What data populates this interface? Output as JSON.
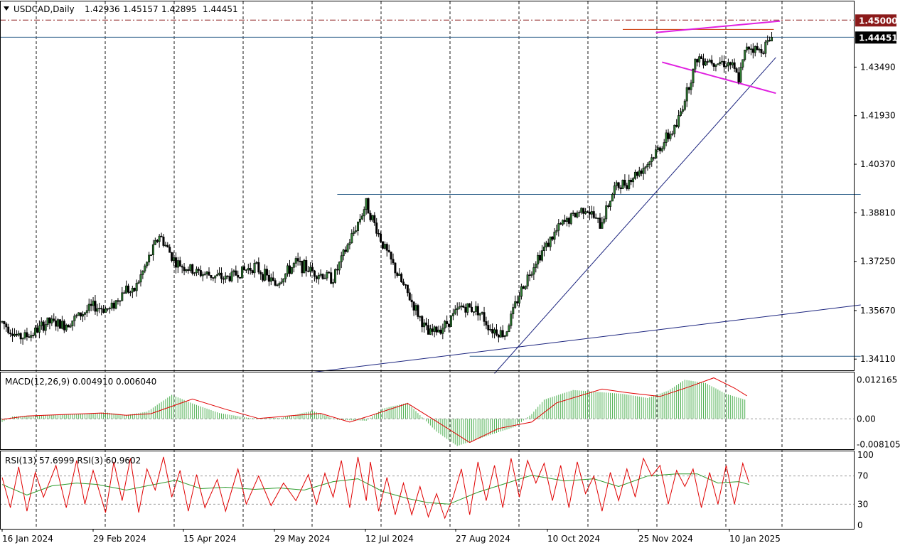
{
  "header": {
    "symbol": "USDCAD,Daily",
    "open": "1.42936",
    "high": "1.45157",
    "low": "1.42895",
    "close": "1.44451"
  },
  "tags": {
    "level": "1.45000",
    "level_color": "#8b1a1a",
    "last": "1.44451",
    "last_color": "#000000"
  },
  "panels": {
    "macd": {
      "label": "MACD(12,26,9) 0.004910 0.006040"
    },
    "rsi": {
      "label": "RSI(13) 57.6999 RSI(3) 60.9602"
    }
  },
  "colors": {
    "bull_candle": "#2e7d32",
    "bear_candle": "#000000",
    "macd_histogram": "#4caf50",
    "macd_signal": "#e00000",
    "rsi_fast": "#e00000",
    "rsi_slow": "#2e9c2e",
    "trendline": "#1a237e",
    "wedge": "#e020e0",
    "horizontal": "#2d5f8a"
  },
  "chart_data": [
    {
      "type": "candlestick",
      "title": "USDCAD,Daily",
      "x_ticks": [
        "16 Jan 2024",
        "29 Feb 2024",
        "15 Apr 2024",
        "29 May 2024",
        "12 Jul 2024",
        "27 Aug 2024",
        "10 Oct 2024",
        "25 Nov 2024",
        "10 Jan 2025"
      ],
      "y_ticks": [
        "1.43490",
        "1.41930",
        "1.40370",
        "1.38810",
        "1.37250",
        "1.35670",
        "1.34110"
      ],
      "ylim": [
        1.3375,
        1.456
      ],
      "grid": true,
      "anchors": [
        [
          0,
          1.353
        ],
        [
          8,
          1.348
        ],
        [
          14,
          1.349
        ],
        [
          22,
          1.353
        ],
        [
          30,
          1.352
        ],
        [
          44,
          1.358
        ],
        [
          52,
          1.357
        ],
        [
          60,
          1.364
        ],
        [
          63,
          1.362
        ],
        [
          70,
          1.372
        ],
        [
          76,
          1.381
        ],
        [
          84,
          1.372
        ],
        [
          94,
          1.369
        ],
        [
          108,
          1.367
        ],
        [
          122,
          1.371
        ],
        [
          132,
          1.365
        ],
        [
          142,
          1.372
        ],
        [
          151,
          1.369
        ],
        [
          160,
          1.367
        ],
        [
          172,
          1.385
        ],
        [
          176,
          1.391
        ],
        [
          184,
          1.378
        ],
        [
          192,
          1.367
        ],
        [
          200,
          1.357
        ],
        [
          206,
          1.349
        ],
        [
          214,
          1.352
        ],
        [
          222,
          1.358
        ],
        [
          230,
          1.357
        ],
        [
          236,
          1.351
        ],
        [
          243,
          1.349
        ],
        [
          250,
          1.362
        ],
        [
          258,
          1.373
        ],
        [
          270,
          1.384
        ],
        [
          282,
          1.39
        ],
        [
          289,
          1.384
        ],
        [
          296,
          1.396
        ],
        [
          302,
          1.398
        ],
        [
          312,
          1.404
        ],
        [
          320,
          1.411
        ],
        [
          326,
          1.416
        ],
        [
          330,
          1.425
        ],
        [
          336,
          1.438
        ],
        [
          344,
          1.437
        ],
        [
          352,
          1.436
        ],
        [
          356,
          1.431
        ],
        [
          360,
          1.442
        ],
        [
          366,
          1.44
        ],
        [
          372,
          1.444
        ]
      ],
      "overlays": [
        {
          "kind": "horizontal",
          "price": 1.45,
          "style": "dash-dot",
          "color": "#8b1a1a"
        },
        {
          "kind": "horizontal",
          "price": 1.44451,
          "color": "#2d5f8a"
        },
        {
          "kind": "segment",
          "from": [
            300,
            1.447
          ],
          "to": [
            373,
            1.447
          ],
          "color": "#cc3300"
        },
        {
          "kind": "segment",
          "from": [
            162,
            1.394
          ],
          "to": [
            415,
            1.394
          ],
          "color": "#2d5f8a"
        },
        {
          "kind": "segment",
          "from": [
            226,
            1.342
          ],
          "to": [
            415,
            1.342
          ],
          "color": "#2d5f8a"
        },
        {
          "kind": "segment",
          "from": [
            149,
            1.3368
          ],
          "to": [
            415,
            1.3585
          ],
          "color": "#1a237e"
        },
        {
          "kind": "segment",
          "from": [
            238,
            1.3365
          ],
          "to": [
            374,
            1.438
          ],
          "color": "#1a237e"
        },
        {
          "kind": "segment",
          "from": [
            316,
            1.446
          ],
          "to": [
            376,
            1.4497
          ],
          "color": "#e020e0"
        },
        {
          "kind": "segment",
          "from": [
            319,
            1.4365
          ],
          "to": [
            374,
            1.4265
          ],
          "color": "#e020e0"
        }
      ]
    },
    {
      "type": "macd",
      "title": "MACD(12,26,9) 0.004910 0.006040",
      "y_ticks": [
        "0.012165",
        "0.00",
        "-0.008105"
      ],
      "ylim": [
        -0.0095,
        0.0145
      ],
      "histogram": [
        [
          0,
          -0.001
        ],
        [
          5,
          0.0007
        ],
        [
          20,
          0.0012
        ],
        [
          40,
          0.0016
        ],
        [
          50,
          0.002
        ],
        [
          60,
          0.0012
        ],
        [
          70,
          0.0022
        ],
        [
          82,
          0.0075
        ],
        [
          92,
          0.0048
        ],
        [
          105,
          0.0018
        ],
        [
          120,
          0.0002
        ],
        [
          135,
          0.0003
        ],
        [
          150,
          0.0025
        ],
        [
          162,
          -0.0003
        ],
        [
          176,
          -0.0006
        ],
        [
          184,
          0.0032
        ],
        [
          196,
          0.005
        ],
        [
          210,
          -0.004
        ],
        [
          220,
          -0.0085
        ],
        [
          236,
          -0.005
        ],
        [
          248,
          -0.0025
        ],
        [
          256,
          0.0015
        ],
        [
          262,
          0.006
        ],
        [
          276,
          0.009
        ],
        [
          288,
          0.0084
        ],
        [
          300,
          0.0078
        ],
        [
          312,
          0.0065
        ],
        [
          322,
          0.0088
        ],
        [
          330,
          0.0122
        ],
        [
          340,
          0.0112
        ],
        [
          350,
          0.0078
        ],
        [
          359,
          0.006
        ]
      ],
      "signal": [
        [
          0,
          -0.0002
        ],
        [
          12,
          0.0009
        ],
        [
          36,
          0.0015
        ],
        [
          48,
          0.0018
        ],
        [
          60,
          0.0011
        ],
        [
          72,
          0.0016
        ],
        [
          92,
          0.0062
        ],
        [
          108,
          0.003
        ],
        [
          124,
          0.0001
        ],
        [
          140,
          0.001
        ],
        [
          154,
          0.0017
        ],
        [
          168,
          -0.001
        ],
        [
          178,
          0.001
        ],
        [
          196,
          0.0048
        ],
        [
          210,
          -0.0008
        ],
        [
          226,
          -0.0074
        ],
        [
          240,
          -0.003
        ],
        [
          256,
          -0.001
        ],
        [
          268,
          0.005
        ],
        [
          290,
          0.0093
        ],
        [
          302,
          0.0082
        ],
        [
          318,
          0.007
        ],
        [
          332,
          0.01
        ],
        [
          344,
          0.0128
        ],
        [
          354,
          0.0096
        ],
        [
          360,
          0.0072
        ]
      ]
    },
    {
      "type": "rsi",
      "title": "RSI(13) 57.6999 RSI(3) 60.9602",
      "y_ticks": [
        "100",
        "70",
        "30",
        "0"
      ],
      "ylim": [
        -5,
        105
      ],
      "rsi_slow": [
        [
          0,
          58
        ],
        [
          12,
          43
        ],
        [
          24,
          56
        ],
        [
          36,
          60
        ],
        [
          46,
          58
        ],
        [
          60,
          50
        ],
        [
          70,
          56
        ],
        [
          84,
          64
        ],
        [
          96,
          52
        ],
        [
          108,
          54
        ],
        [
          122,
          51
        ],
        [
          134,
          53
        ],
        [
          146,
          50
        ],
        [
          160,
          62
        ],
        [
          172,
          66
        ],
        [
          184,
          48
        ],
        [
          196,
          38
        ],
        [
          206,
          32
        ],
        [
          216,
          30
        ],
        [
          230,
          47
        ],
        [
          244,
          60
        ],
        [
          256,
          71
        ],
        [
          272,
          63
        ],
        [
          286,
          66
        ],
        [
          298,
          55
        ],
        [
          312,
          70
        ],
        [
          326,
          73
        ],
        [
          336,
          73
        ],
        [
          346,
          60
        ],
        [
          356,
          62
        ],
        [
          361,
          58
        ]
      ],
      "rsi_fast": [
        [
          0,
          68
        ],
        [
          4,
          25
        ],
        [
          8,
          83
        ],
        [
          12,
          20
        ],
        [
          16,
          75
        ],
        [
          20,
          40
        ],
        [
          26,
          85
        ],
        [
          31,
          25
        ],
        [
          36,
          92
        ],
        [
          40,
          30
        ],
        [
          44,
          78
        ],
        [
          50,
          18
        ],
        [
          54,
          90
        ],
        [
          58,
          35
        ],
        [
          62,
          95
        ],
        [
          66,
          18
        ],
        [
          70,
          80
        ],
        [
          74,
          50
        ],
        [
          78,
          97
        ],
        [
          82,
          40
        ],
        [
          86,
          78
        ],
        [
          90,
          20
        ],
        [
          94,
          72
        ],
        [
          98,
          25
        ],
        [
          104,
          65
        ],
        [
          108,
          20
        ],
        [
          114,
          80
        ],
        [
          118,
          30
        ],
        [
          124,
          70
        ],
        [
          130,
          28
        ],
        [
          136,
          60
        ],
        [
          142,
          35
        ],
        [
          148,
          72
        ],
        [
          152,
          30
        ],
        [
          156,
          74
        ],
        [
          160,
          40
        ],
        [
          164,
          92
        ],
        [
          168,
          25
        ],
        [
          172,
          97
        ],
        [
          176,
          35
        ],
        [
          178,
          90
        ],
        [
          182,
          20
        ],
        [
          186,
          68
        ],
        [
          190,
          15
        ],
        [
          194,
          60
        ],
        [
          198,
          15
        ],
        [
          202,
          55
        ],
        [
          206,
          12
        ],
        [
          210,
          45
        ],
        [
          214,
          10
        ],
        [
          218,
          40
        ],
        [
          222,
          80
        ],
        [
          226,
          15
        ],
        [
          230,
          90
        ],
        [
          234,
          35
        ],
        [
          238,
          85
        ],
        [
          242,
          25
        ],
        [
          246,
          95
        ],
        [
          250,
          40
        ],
        [
          254,
          92
        ],
        [
          258,
          60
        ],
        [
          262,
          88
        ],
        [
          266,
          35
        ],
        [
          270,
          85
        ],
        [
          274,
          25
        ],
        [
          278,
          90
        ],
        [
          282,
          45
        ],
        [
          286,
          70
        ],
        [
          290,
          20
        ],
        [
          294,
          75
        ],
        [
          298,
          35
        ],
        [
          302,
          80
        ],
        [
          306,
          40
        ],
        [
          310,
          95
        ],
        [
          314,
          70
        ],
        [
          318,
          85
        ],
        [
          322,
          30
        ],
        [
          326,
          78
        ],
        [
          330,
          55
        ],
        [
          334,
          80
        ],
        [
          338,
          25
        ],
        [
          342,
          75
        ],
        [
          346,
          30
        ],
        [
          350,
          85
        ],
        [
          354,
          30
        ],
        [
          358,
          88
        ],
        [
          361,
          61
        ]
      ]
    }
  ]
}
